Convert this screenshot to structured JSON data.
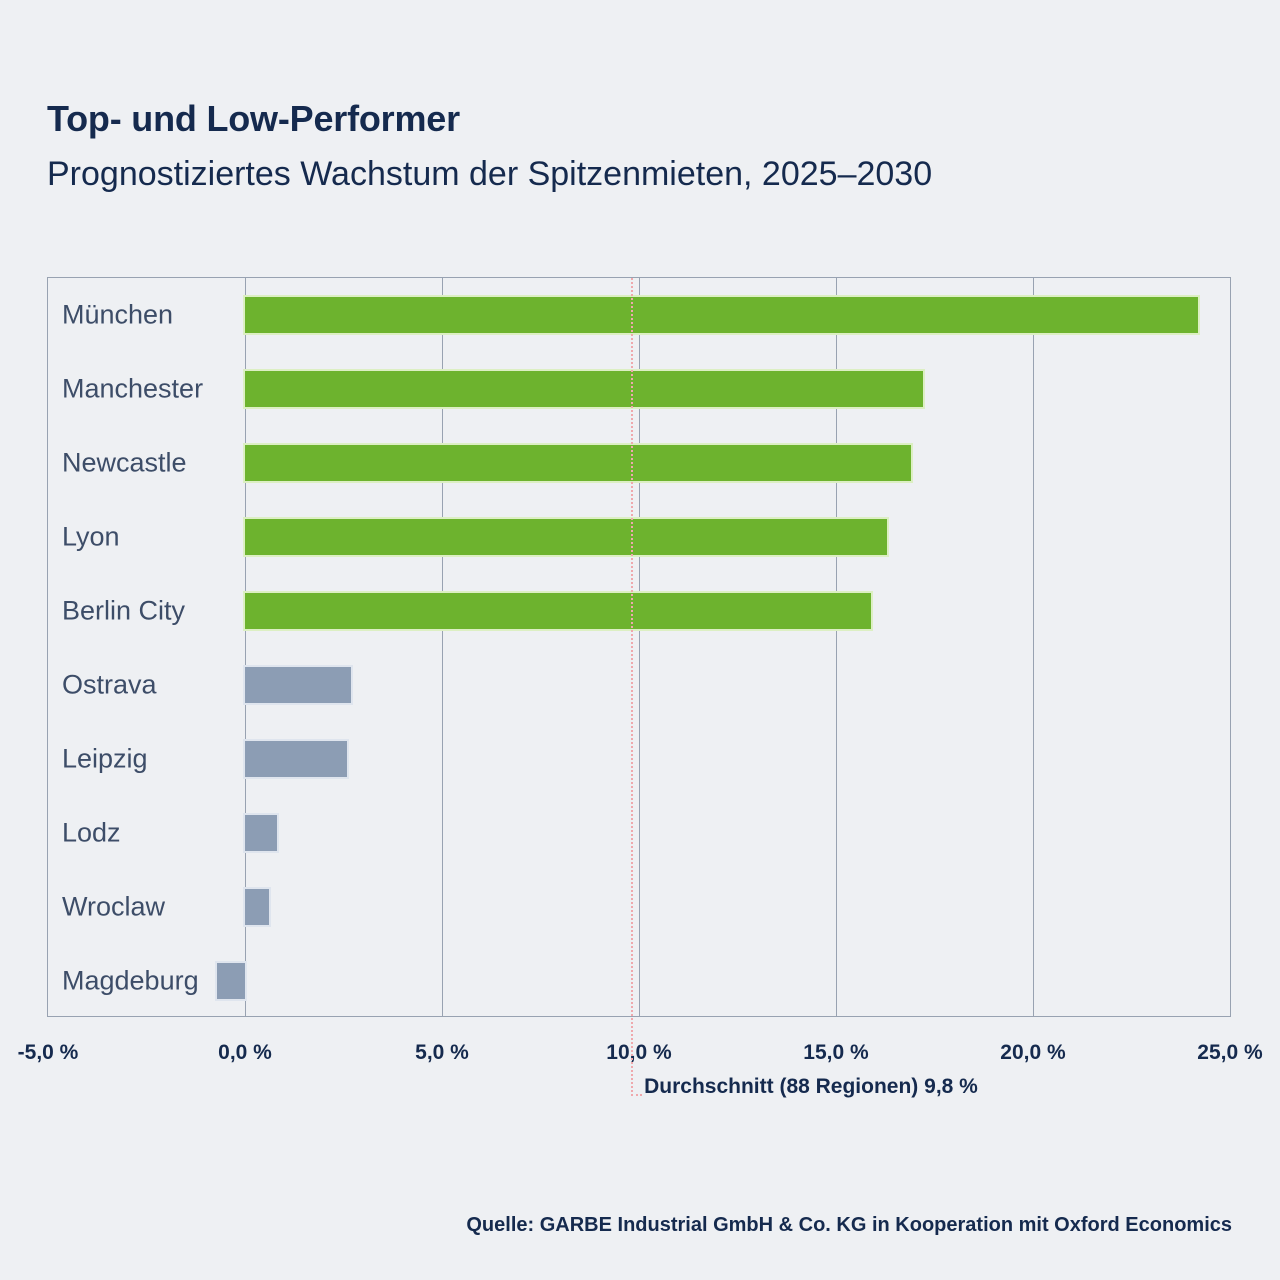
{
  "page": {
    "title": "Top- und Low-Performer",
    "subtitle": "Prognostiziertes Wachstum der Spitzenmieten, 2025–2030",
    "source": "Quelle: GARBE Industrial GmbH & Co. KG in Kooperation mit Oxford Economics"
  },
  "colors": {
    "background": "#eef0f3",
    "text_dark": "#152a4e",
    "label_text": "#3d4d68",
    "grid": "#98a2b1",
    "top_bar": "#6db32e",
    "top_bar_edge": "#dcefc3",
    "low_bar": "#8c9db4",
    "low_bar_edge": "#dfe5ee",
    "average_line": "#efa9ad"
  },
  "chart_data": {
    "type": "bar",
    "orientation": "horizontal",
    "title": "Top- und Low-Performer",
    "subtitle": "Prognostiziertes Wachstum der Spitzenmieten, 2025–2030",
    "categories": [
      "München",
      "Manchester",
      "Newcastle",
      "Lyon",
      "Berlin City",
      "Ostrava",
      "Leipzig",
      "Lodz",
      "Wroclaw",
      "Magdeburg"
    ],
    "values": [
      24.2,
      17.2,
      16.9,
      16.3,
      15.9,
      2.7,
      2.6,
      0.8,
      0.6,
      -0.7
    ],
    "groups": [
      "top",
      "top",
      "top",
      "top",
      "top",
      "low",
      "low",
      "low",
      "low",
      "low"
    ],
    "unit": "%",
    "xlim": [
      -5,
      25
    ],
    "x_tick_values": [
      -5,
      0,
      5,
      10,
      15,
      20,
      25
    ],
    "x_tick_labels": [
      "-5,0 %",
      "0,0 %",
      "5,0 %",
      "10,0 %",
      "15,0 %",
      "20,0 %",
      "25,0 %"
    ],
    "grid": true,
    "gridline_values": [
      0,
      5,
      10,
      15,
      20
    ],
    "average_line": {
      "value": 9.8,
      "label": "Durchschnitt (88 Regionen) 9,8 %"
    },
    "legend": null
  }
}
